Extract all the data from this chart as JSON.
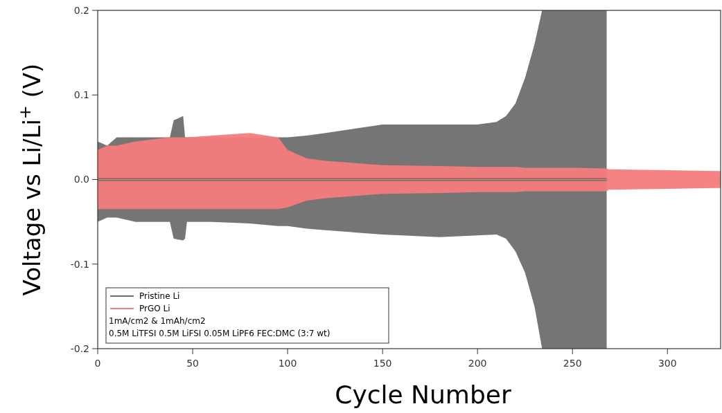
{
  "chart_data": {
    "type": "line",
    "xlabel": "Cycle Number",
    "ylabel": "Voltage vs Li/Li$^{+}$ (V)",
    "x": [
      0,
      5,
      10,
      20,
      38,
      40,
      45,
      46,
      47,
      60,
      80,
      95,
      100,
      110,
      120,
      150,
      180,
      200,
      210,
      215,
      220,
      225,
      230,
      234,
      250,
      268,
      269,
      300,
      328
    ],
    "xlim": [
      0,
      328
    ],
    "xticks": [
      0,
      50,
      100,
      150,
      200,
      250,
      300
    ],
    "ylim": [
      -0.2,
      0.2
    ],
    "yticks": [
      {
        "value": -0.2,
        "label": "-0.2"
      },
      {
        "value": -0.1,
        "label": "-0.1"
      },
      {
        "value": 0,
        "label": "0.0"
      },
      {
        "value": 0.1,
        "label": "0.1"
      },
      {
        "value": 0.2,
        "label": "0.2"
      }
    ],
    "series": [
      {
        "name": "Pristine Li",
        "color": "#6e6e6e",
        "values": [
          0,
          0,
          0,
          0,
          0,
          0,
          0,
          0,
          0,
          0,
          0,
          0,
          0,
          0,
          0,
          0,
          0,
          0,
          0,
          0,
          0,
          0,
          0,
          0,
          0,
          0,
          null,
          null,
          null
        ],
        "lower": [
          -0.05,
          -0.045,
          -0.045,
          -0.05,
          -0.05,
          -0.07,
          -0.072,
          -0.07,
          -0.05,
          -0.05,
          -0.052,
          -0.055,
          -0.055,
          -0.058,
          -0.06,
          -0.065,
          -0.068,
          -0.066,
          -0.065,
          -0.07,
          -0.085,
          -0.11,
          -0.15,
          -0.2,
          -0.2,
          -0.2,
          null,
          null,
          null
        ],
        "upper": [
          0.045,
          0.04,
          0.05,
          0.05,
          0.05,
          0.07,
          0.075,
          0.05,
          0.05,
          0.05,
          0.05,
          0.05,
          0.05,
          0.052,
          0.055,
          0.065,
          0.065,
          0.065,
          0.068,
          0.075,
          0.09,
          0.12,
          0.16,
          0.2,
          0.2,
          0.2,
          null,
          null,
          null
        ]
      },
      {
        "name": "PrGO Li",
        "color": "#f47c7c",
        "values": [
          0,
          0,
          0,
          0,
          0,
          0,
          0,
          0,
          0,
          0,
          0,
          0,
          0,
          0,
          0,
          0,
          0,
          0,
          0,
          0,
          0,
          0,
          0,
          0,
          0,
          0,
          0,
          0,
          0
        ],
        "lower": [
          -0.035,
          -0.035,
          -0.035,
          -0.035,
          -0.035,
          -0.035,
          -0.035,
          -0.035,
          -0.035,
          -0.035,
          -0.035,
          -0.035,
          -0.033,
          -0.025,
          -0.022,
          -0.017,
          -0.016,
          -0.015,
          -0.015,
          -0.015,
          -0.015,
          -0.014,
          -0.014,
          -0.014,
          -0.014,
          -0.014,
          -0.012,
          -0.011,
          -0.01
        ],
        "upper": [
          0.035,
          0.04,
          0.04,
          0.045,
          0.05,
          0.05,
          0.05,
          0.05,
          0.05,
          0.052,
          0.055,
          0.05,
          0.035,
          0.025,
          0.022,
          0.017,
          0.016,
          0.015,
          0.015,
          0.015,
          0.015,
          0.014,
          0.014,
          0.014,
          0.014,
          0.013,
          0.012,
          0.011,
          0.01
        ]
      }
    ],
    "legend": "bottom left",
    "annotations": [
      "1mA/cm2 & 1mAh/cm2",
      "0.5M LiTFSI 0.5M LiFSI 0.05M LiPF6 FEC:DMC (3:7 wt)"
    ]
  }
}
